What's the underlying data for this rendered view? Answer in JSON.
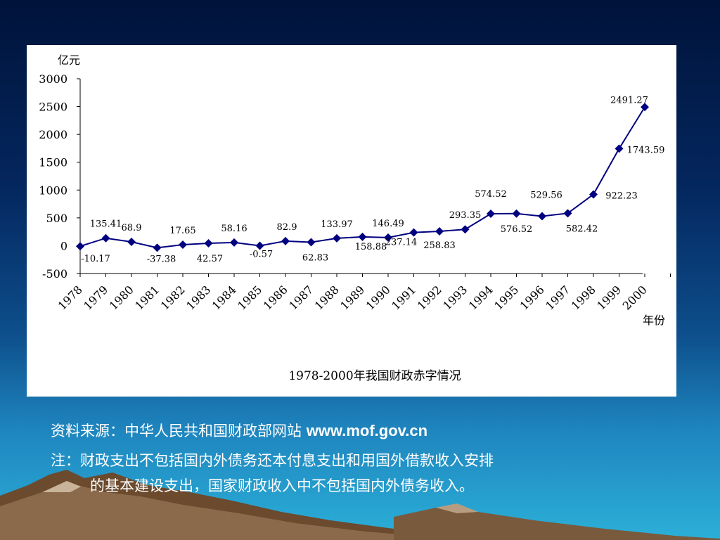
{
  "chart_data": {
    "type": "line",
    "title": "1978-2000年我国财政赤字情况",
    "ylabel": "亿元",
    "xlabel": "年份",
    "ylim": [
      -500,
      3000
    ],
    "yticks": [
      -500,
      0,
      500,
      1000,
      1500,
      2000,
      2500,
      3000
    ],
    "categories": [
      "1978",
      "1979",
      "1980",
      "1981",
      "1982",
      "1983",
      "1984",
      "1985",
      "1986",
      "1987",
      "1988",
      "1989",
      "1990",
      "1991",
      "1992",
      "1993",
      "1994",
      "1995",
      "1996",
      "1997",
      "1998",
      "1999",
      "2000"
    ],
    "values": [
      -10.17,
      135.41,
      68.9,
      -37.38,
      17.65,
      42.57,
      58.16,
      -0.57,
      82.9,
      62.83,
      133.97,
      158.88,
      146.49,
      237.14,
      258.83,
      293.35,
      574.52,
      576.52,
      529.56,
      582.42,
      922.23,
      1743.59,
      2491.27
    ],
    "data_labels": [
      "-10.17",
      "135.41",
      "68.9",
      "-37.38",
      "17.65",
      "42.57",
      "58.16",
      "-0.57",
      "82.9",
      "62.83",
      "133.97",
      "158.88",
      "146.49",
      "237.14",
      "258.83",
      "293.35",
      "574.52",
      "576.52",
      "529.56",
      "582.42",
      "922.23",
      "1743.59",
      "2491.27"
    ],
    "series_color": "#000080",
    "grid": false,
    "legend": "none"
  },
  "source": {
    "label": "资料来源：中华人民共和国财政部网站",
    "url": "www.mof.gov.cn"
  },
  "note": {
    "line1": "注：财政支出不包括国内外债务还本付息支出和用国外借款收入安排",
    "line2": "的基本建设支出，国家财政收入中不包括国内外债务收入。"
  }
}
